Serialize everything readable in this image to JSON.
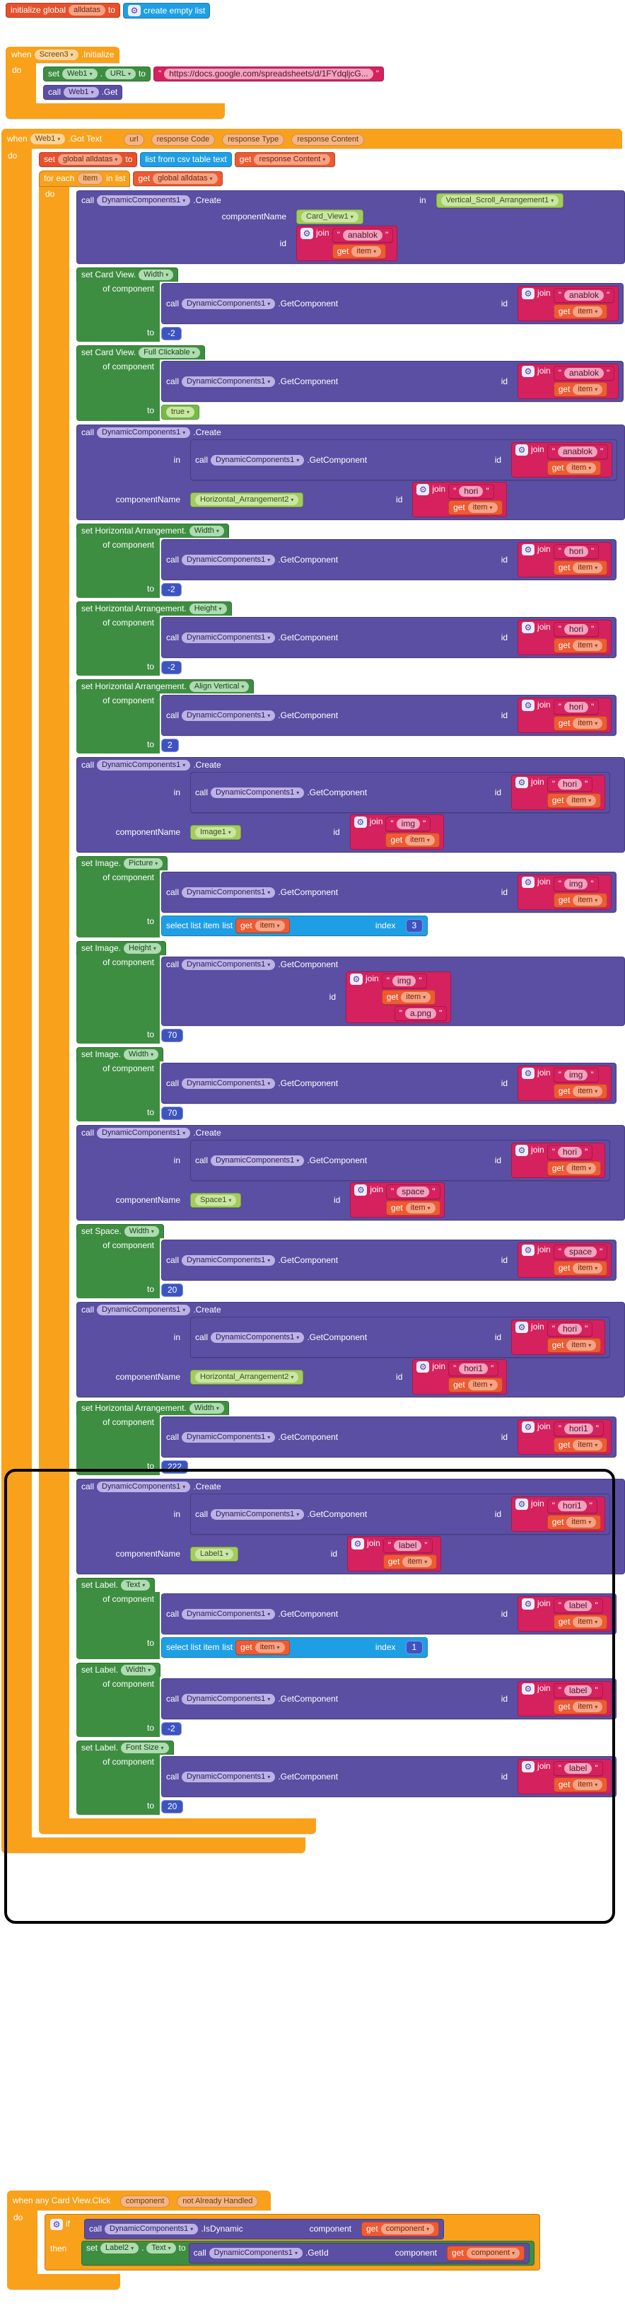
{
  "kw": {
    "when": "when",
    "do": "do",
    "set": "set",
    "call": "call",
    "to": "to",
    "of_component": "of component",
    "in": "in",
    "component_name": "componentName",
    "id": "id",
    "join": "join",
    "get": "get",
    "for_each": "for each",
    "in_list": "in list",
    "if": "if",
    "then": "then",
    "list": "list",
    "index": "index",
    "dot": ".",
    "dd": "▾",
    "q": "\"",
    "gear": "⚙",
    "init_global": "initialize global",
    "create_empty_list": "create empty list",
    "csv": "list from csv table text",
    "select_list_item": "select list item"
  },
  "names": {
    "item": "item",
    "global_alldatas": "global alldatas",
    "alldatas": "alldatas",
    "response_content": "response Content",
    "component": "component",
    "dc": "DynamicComponents1",
    "web": "Web1",
    "screen": "Screen3",
    "label2": "Label2"
  },
  "methods": {
    "create": ".Create",
    "get_component": ".GetComponent",
    "get": ".Get",
    "got_text": ".Got Text",
    "initialize": ".Initialize",
    "is_dynamic": ".IsDynamic",
    "get_id": ".GetId",
    "url_prop": "URL",
    "text_prop": "Text"
  },
  "screen_init": {
    "url": "https://docs.google.com/spreadsheets/d/1FYdqljcG..."
  },
  "got_text_params": [
    "url",
    "response Code",
    "response Type",
    "response Content"
  ],
  "card_click": {
    "title": "when any Card View.Click",
    "params": [
      "component",
      "not Already Handled"
    ]
  },
  "stmts": [
    {
      "kind": "create",
      "in_comp": "Vertical_Scroll_Arrangement1",
      "name": "Card_View1",
      "id": "anablok"
    },
    {
      "kind": "set",
      "label": "set Card View.",
      "prop": "Width",
      "id": "anablok",
      "to_num": "-2"
    },
    {
      "kind": "set",
      "label": "set Card View.",
      "prop": "Full Clickable",
      "id": "anablok",
      "to_logic": "true"
    },
    {
      "kind": "create",
      "in_id": "anablok",
      "name": "Horizontal_Arrangement2",
      "id": "hori"
    },
    {
      "kind": "set",
      "label": "set Horizontal Arrangement.",
      "prop": "Width",
      "id": "hori",
      "to_num": "-2"
    },
    {
      "kind": "set",
      "label": "set Horizontal Arrangement.",
      "prop": "Height",
      "id": "hori",
      "to_num": "-2"
    },
    {
      "kind": "set",
      "label": "set Horizontal Arrangement.",
      "prop": "Align Vertical",
      "id": "hori",
      "to_num": "2"
    },
    {
      "kind": "create",
      "in_id": "hori",
      "name": "Image1",
      "id": "img"
    },
    {
      "kind": "set",
      "label": "set Image.",
      "prop": "Picture",
      "id": "img",
      "to_select": {
        "index": "3"
      }
    },
    {
      "kind": "set",
      "label": "set Image.",
      "prop": "Height",
      "id": "img",
      "to_num": "70",
      "float_str": "a.png"
    },
    {
      "kind": "set",
      "label": "set Image.",
      "prop": "Width",
      "id": "img",
      "to_num": "70"
    },
    {
      "kind": "create",
      "in_id": "hori",
      "name": "Space1",
      "id": "space"
    },
    {
      "kind": "set",
      "label": "set Space.",
      "prop": "Width",
      "id": "space",
      "to_num": "20"
    },
    {
      "kind": "create",
      "in_id": "hori",
      "name": "Horizontal_Arrangement2",
      "id": "hori1"
    },
    {
      "kind": "set",
      "label": "set Horizontal Arrangement.",
      "prop": "Width",
      "id": "hori1",
      "to_num": "222"
    },
    {
      "kind": "create",
      "in_id": "hori1",
      "name": "Label1",
      "id": "label"
    },
    {
      "kind": "set",
      "label": "set Label.",
      "prop": "Text",
      "id": "label",
      "to_select": {
        "index": "1"
      }
    },
    {
      "kind": "set",
      "label": "set Label.",
      "prop": "Width",
      "id": "label",
      "to_num": "-2"
    },
    {
      "kind": "set",
      "label": "set Label.",
      "prop": "Font Size",
      "id": "label",
      "to_num": "20"
    }
  ],
  "colors": {
    "event_orange": "#F9A11B",
    "variable_red": "#E8502B",
    "get_red": "#EE5A31",
    "setter_green": "#3E8E41",
    "component_green": "#A2CC5E",
    "logic_green": "#76BB45",
    "method_purple": "#5A4FA3",
    "list_blue": "#1E9FE5",
    "math_indigo": "#3D54C0",
    "text_pink": "#D6215F",
    "annotation": "#000000"
  }
}
